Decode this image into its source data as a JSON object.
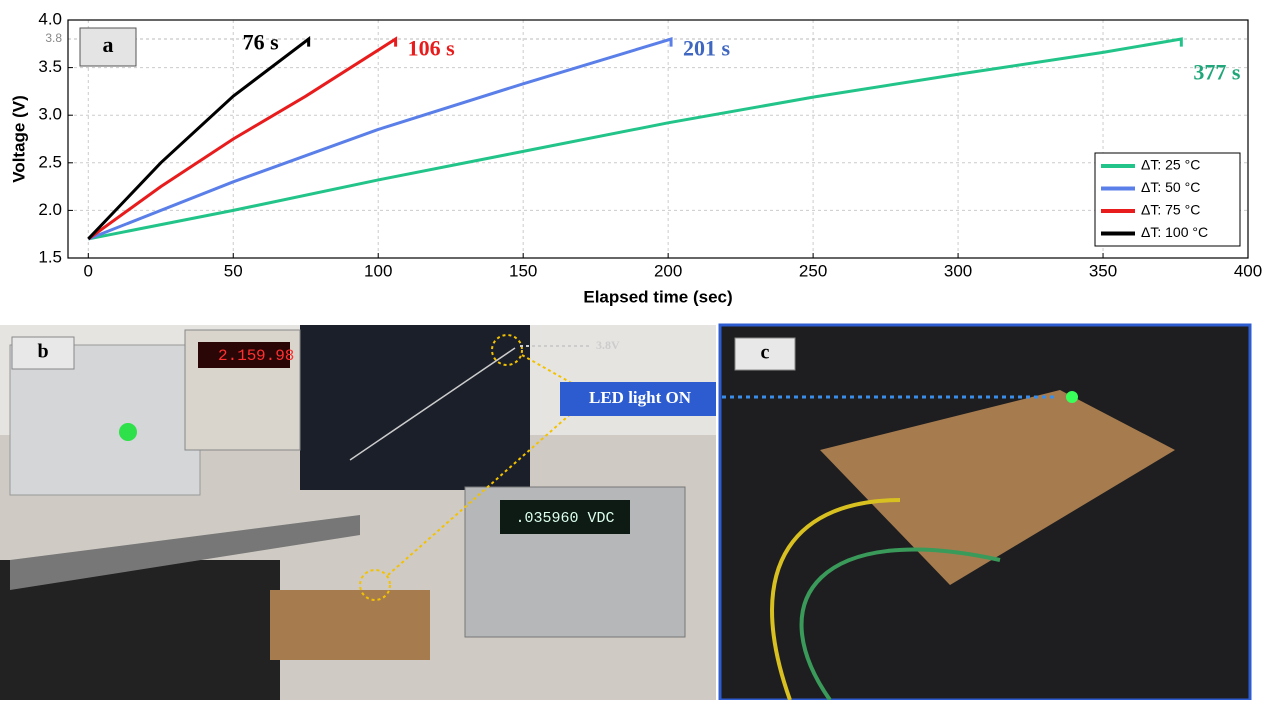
{
  "chart_data": {
    "type": "line",
    "panel_label": "a",
    "x_label": "Elapsed time (sec)",
    "y_label": "Voltage (V)",
    "xlim": [
      -7,
      400
    ],
    "ylim": [
      1.5,
      4.0
    ],
    "xticks": [
      0,
      50,
      100,
      150,
      200,
      250,
      300,
      350,
      400
    ],
    "yticks": [
      1.5,
      {
        "value": 2,
        "label": "2.0"
      },
      2.5,
      {
        "value": 3,
        "label": "3.0"
      },
      3.5,
      {
        "value": 4,
        "label": "4.0"
      }
    ],
    "reference_line": 3.8,
    "grid": true,
    "legend": "lower right",
    "series": [
      {
        "name": "ΔT: 25 °C",
        "color": "#22c48a",
        "end_label": "377 s",
        "label_color": "#1fa67a",
        "x": [
          0,
          50,
          100,
          150,
          200,
          250,
          300,
          350,
          377,
          377
        ],
        "values": [
          1.7,
          2.0,
          2.32,
          2.62,
          2.92,
          3.19,
          3.43,
          3.66,
          3.8,
          3.72
        ]
      },
      {
        "name": "ΔT: 50 °C",
        "color": "#5b7fe8",
        "end_label": "201 s",
        "label_color": "#3f66c0",
        "x": [
          0,
          50,
          100,
          150,
          201,
          201
        ],
        "values": [
          1.7,
          2.3,
          2.85,
          3.33,
          3.8,
          3.72
        ]
      },
      {
        "name": "ΔT: 75 °C",
        "color": "#e81c1c",
        "end_label": "106 s",
        "label_color": "#e81c1c",
        "x": [
          0,
          25,
          50,
          75,
          106,
          106
        ],
        "values": [
          1.7,
          2.25,
          2.75,
          3.2,
          3.8,
          3.72
        ]
      },
      {
        "name": "ΔT: 100 °C",
        "color": "#000000",
        "end_label": "76 s",
        "label_color": "#000000",
        "x": [
          0,
          25,
          50,
          76,
          76
        ],
        "values": [
          1.7,
          2.5,
          3.2,
          3.8,
          3.72
        ]
      }
    ]
  },
  "photos": {
    "b": {
      "label": "b",
      "supply_display_1": "2.15",
      "supply_display_2": "9.98",
      "meter_display": ".035960 VDC",
      "screen_marker": "3.8V",
      "callout": "LED light ON"
    },
    "c": {
      "label": "c"
    }
  }
}
